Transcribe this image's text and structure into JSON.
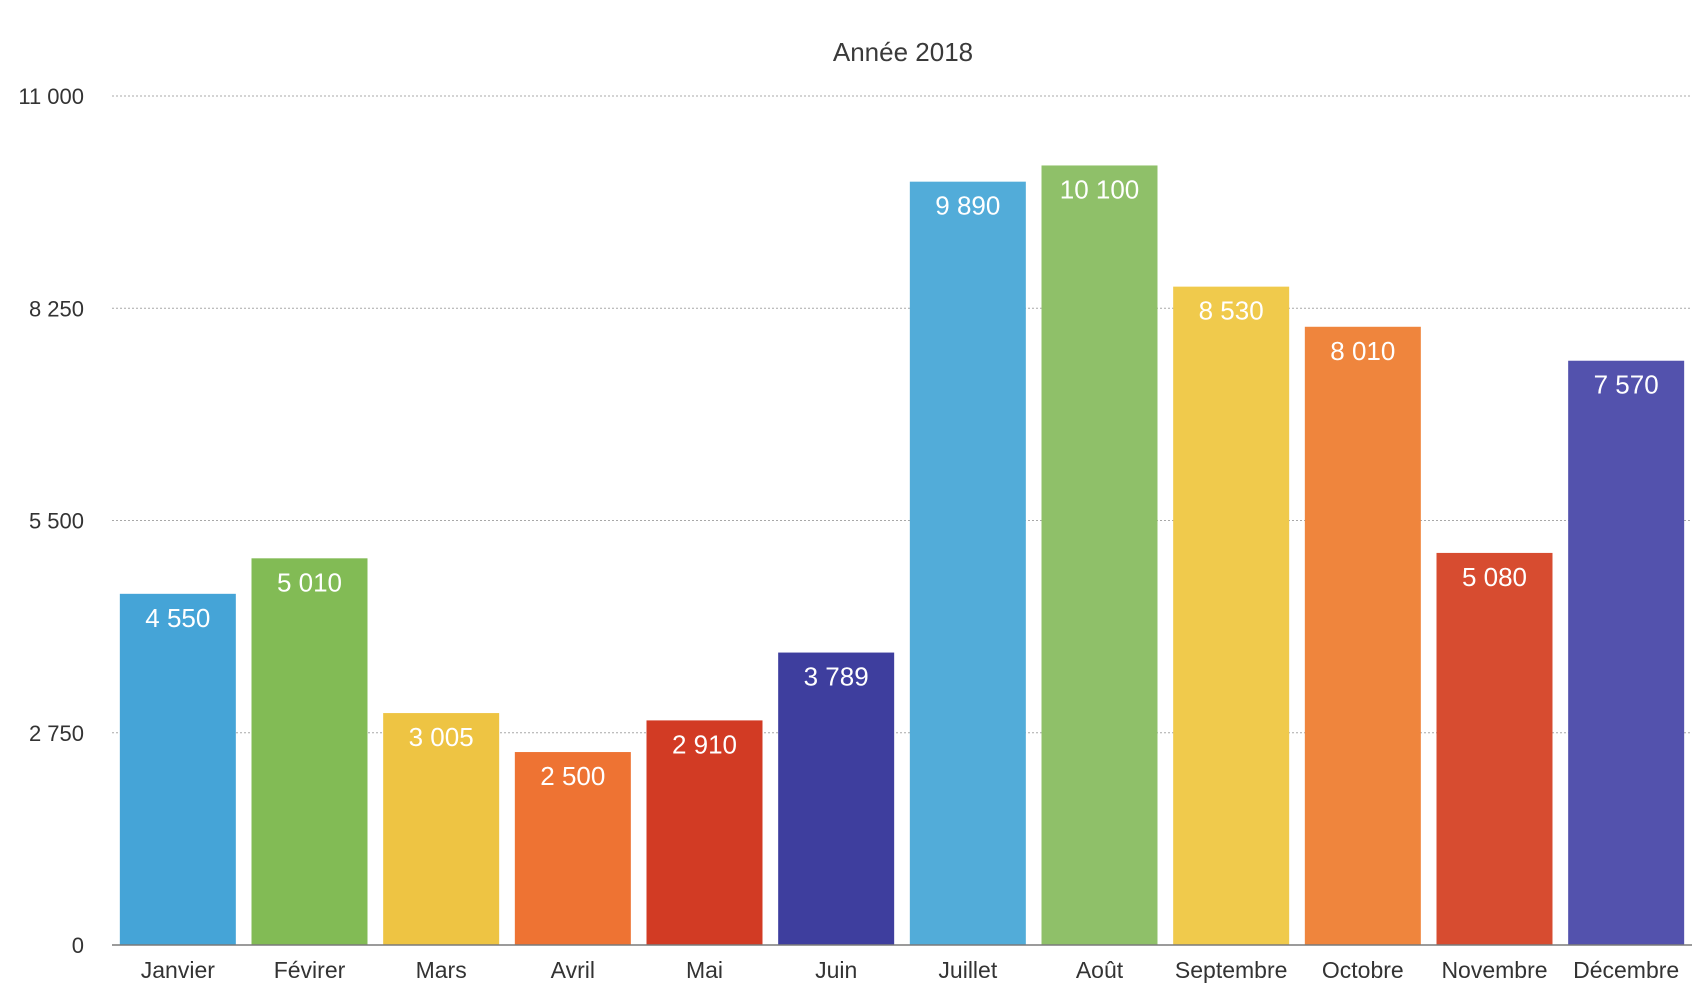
{
  "chart_data": {
    "type": "bar",
    "title": "Année 2018",
    "xlabel": "",
    "ylabel": "",
    "ylim": [
      0,
      11000
    ],
    "yticks": [
      0,
      2750,
      5500,
      8250,
      11000
    ],
    "ytick_labels": [
      "0",
      "2 750",
      "5 500",
      "8 250",
      "11 000"
    ],
    "grid": true,
    "legend": "none",
    "categories": [
      "Janvier",
      "Févirer",
      "Mars",
      "Avril",
      "Mai",
      "Juin",
      "Juillet",
      "Août",
      "Septembre",
      "Octobre",
      "Novembre",
      "Décembre"
    ],
    "values": [
      4550,
      5010,
      3005,
      2500,
      2910,
      3789,
      9890,
      10100,
      8530,
      8010,
      5080,
      7570
    ],
    "data_labels": [
      "4 550",
      "5 010",
      "3 005",
      "2 500",
      "2 910",
      "3 789",
      "9 890",
      "10 100",
      "8 530",
      "8 010",
      "5 080",
      "7 570"
    ],
    "colors": [
      "#45a4d7",
      "#82bb55",
      "#eec443",
      "#ee7333",
      "#d23b24",
      "#3e3e9e",
      "#52acd9",
      "#8fc069",
      "#f0ca4c",
      "#ef853d",
      "#d74c30",
      "#5352ad"
    ]
  }
}
